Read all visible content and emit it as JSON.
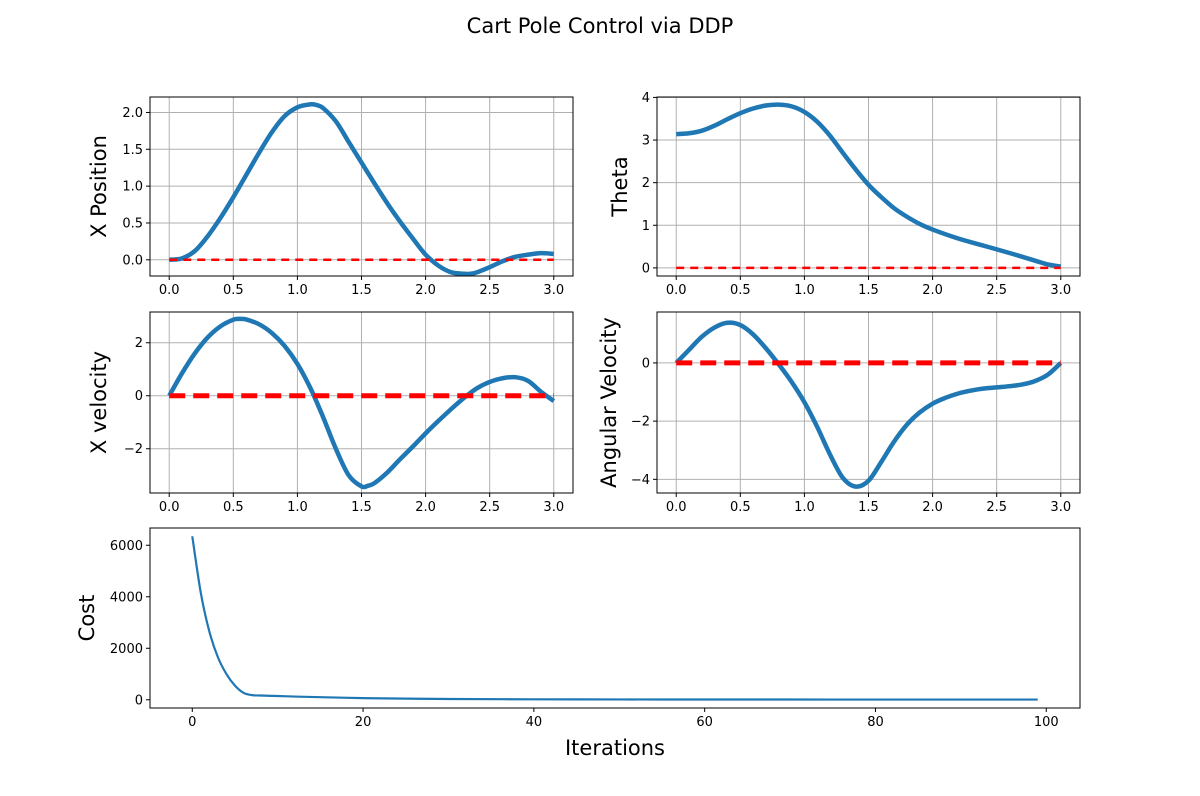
{
  "title": "Cart Pole Control via DDP",
  "colors": {
    "state": "#1f77b4",
    "target": "#ff0000",
    "grid": "#b0b0b0"
  },
  "chart_data": [
    {
      "id": "x_position",
      "type": "line",
      "title": "",
      "xlabel": "",
      "ylabel": "X Position",
      "xlim": [
        -0.15,
        3.15
      ],
      "ylim": [
        -0.22,
        2.21
      ],
      "xticks": [
        0.0,
        0.5,
        1.0,
        1.5,
        2.0,
        2.5,
        3.0
      ],
      "xtick_labels": [
        "0.0",
        "0.5",
        "1.0",
        "1.5",
        "2.0",
        "2.5",
        "3.0"
      ],
      "yticks": [
        0.0,
        0.5,
        1.0,
        1.5,
        2.0
      ],
      "ytick_labels": [
        "0.0",
        "0.5",
        "1.0",
        "1.5",
        "2.0"
      ],
      "grid": true,
      "series": [
        {
          "name": "state",
          "style": "solid",
          "x": [
            0,
            0.1,
            0.2,
            0.3,
            0.4,
            0.5,
            0.6,
            0.7,
            0.8,
            0.9,
            1.0,
            1.1,
            1.15,
            1.2,
            1.3,
            1.4,
            1.5,
            1.6,
            1.7,
            1.8,
            1.9,
            2.0,
            2.1,
            2.2,
            2.3,
            2.35,
            2.4,
            2.5,
            2.6,
            2.7,
            2.8,
            2.9,
            3.0
          ],
          "y": [
            0,
            0.02,
            0.12,
            0.32,
            0.57,
            0.85,
            1.15,
            1.45,
            1.73,
            1.95,
            2.07,
            2.11,
            2.1,
            2.06,
            1.88,
            1.6,
            1.32,
            1.04,
            0.77,
            0.52,
            0.29,
            0.07,
            -0.08,
            -0.17,
            -0.19,
            -0.19,
            -0.17,
            -0.1,
            -0.02,
            0.04,
            0.07,
            0.09,
            0.08
          ]
        },
        {
          "name": "target",
          "style": "dashed",
          "x": [
            0,
            3.0
          ],
          "y": [
            0,
            0
          ]
        }
      ]
    },
    {
      "id": "theta",
      "type": "line",
      "title": "",
      "xlabel": "",
      "ylabel": "Theta",
      "xlim": [
        -0.15,
        3.15
      ],
      "ylim": [
        -0.19,
        4.01
      ],
      "xticks": [
        0.0,
        0.5,
        1.0,
        1.5,
        2.0,
        2.5,
        3.0
      ],
      "xtick_labels": [
        "0.0",
        "0.5",
        "1.0",
        "1.5",
        "2.0",
        "2.5",
        "3.0"
      ],
      "yticks": [
        0,
        1,
        2,
        3,
        4
      ],
      "ytick_labels": [
        "0",
        "1",
        "2",
        "3",
        "4"
      ],
      "grid": true,
      "series": [
        {
          "name": "state",
          "style": "solid",
          "x": [
            0,
            0.1,
            0.2,
            0.3,
            0.4,
            0.5,
            0.6,
            0.7,
            0.8,
            0.9,
            1.0,
            1.1,
            1.2,
            1.3,
            1.4,
            1.5,
            1.6,
            1.7,
            1.8,
            1.9,
            2.0,
            2.2,
            2.4,
            2.6,
            2.8,
            2.9,
            3.0
          ],
          "y": [
            3.14,
            3.16,
            3.22,
            3.34,
            3.49,
            3.63,
            3.74,
            3.81,
            3.83,
            3.79,
            3.66,
            3.43,
            3.1,
            2.7,
            2.31,
            1.95,
            1.66,
            1.4,
            1.2,
            1.03,
            0.9,
            0.69,
            0.52,
            0.35,
            0.17,
            0.08,
            0.03
          ]
        },
        {
          "name": "target",
          "style": "dashed",
          "x": [
            0,
            3.0
          ],
          "y": [
            0,
            0
          ]
        }
      ]
    },
    {
      "id": "x_velocity",
      "type": "line",
      "title": "",
      "xlabel": "",
      "ylabel": "X velocity",
      "xlim": [
        -0.15,
        3.15
      ],
      "ylim": [
        -3.67,
        3.16
      ],
      "xticks": [
        0.0,
        0.5,
        1.0,
        1.5,
        2.0,
        2.5,
        3.0
      ],
      "xtick_labels": [
        "0.0",
        "0.5",
        "1.0",
        "1.5",
        "2.0",
        "2.5",
        "3.0"
      ],
      "yticks": [
        -2,
        0,
        2
      ],
      "ytick_labels": [
        "−2",
        "0",
        "2"
      ],
      "grid": true,
      "series": [
        {
          "name": "state",
          "style": "solid",
          "x": [
            0,
            0.1,
            0.2,
            0.3,
            0.4,
            0.5,
            0.55,
            0.6,
            0.7,
            0.8,
            0.9,
            1.0,
            1.1,
            1.2,
            1.3,
            1.4,
            1.5,
            1.55,
            1.6,
            1.7,
            1.8,
            1.9,
            2.0,
            2.1,
            2.2,
            2.3,
            2.4,
            2.5,
            2.6,
            2.7,
            2.8,
            2.9,
            3.0
          ],
          "y": [
            0,
            0.85,
            1.6,
            2.2,
            2.62,
            2.87,
            2.9,
            2.88,
            2.7,
            2.37,
            1.88,
            1.2,
            0.3,
            -0.8,
            -2.0,
            -3.0,
            -3.42,
            -3.4,
            -3.3,
            -2.9,
            -2.4,
            -1.92,
            -1.42,
            -0.95,
            -0.5,
            -0.08,
            0.28,
            0.52,
            0.66,
            0.7,
            0.56,
            0.15,
            -0.2
          ]
        },
        {
          "name": "target",
          "style": "dashed",
          "x": [
            0,
            3.0
          ],
          "y": [
            0,
            0
          ]
        }
      ]
    },
    {
      "id": "angular_velocity",
      "type": "line",
      "title": "",
      "xlabel": "",
      "ylabel": "Angular Velocity",
      "xlim": [
        -0.15,
        3.15
      ],
      "ylim": [
        -4.47,
        1.75
      ],
      "xticks": [
        0.0,
        0.5,
        1.0,
        1.5,
        2.0,
        2.5,
        3.0
      ],
      "xtick_labels": [
        "0.0",
        "0.5",
        "1.0",
        "1.5",
        "2.0",
        "2.5",
        "3.0"
      ],
      "yticks": [
        -4,
        -2,
        0
      ],
      "ytick_labels": [
        "−4",
        "−2",
        "0"
      ],
      "grid": true,
      "series": [
        {
          "name": "state",
          "style": "solid",
          "x": [
            0,
            0.1,
            0.2,
            0.3,
            0.4,
            0.5,
            0.6,
            0.7,
            0.8,
            0.9,
            1.0,
            1.1,
            1.2,
            1.3,
            1.4,
            1.5,
            1.6,
            1.7,
            1.8,
            1.9,
            2.0,
            2.1,
            2.2,
            2.3,
            2.4,
            2.5,
            2.6,
            2.7,
            2.8,
            2.9,
            3.0
          ],
          "y": [
            0,
            0.45,
            0.9,
            1.22,
            1.38,
            1.3,
            0.98,
            0.5,
            -0.05,
            -0.65,
            -1.35,
            -2.2,
            -3.15,
            -3.95,
            -4.25,
            -4.05,
            -3.4,
            -2.7,
            -2.12,
            -1.7,
            -1.4,
            -1.2,
            -1.05,
            -0.95,
            -0.88,
            -0.84,
            -0.8,
            -0.74,
            -0.62,
            -0.4,
            0.0
          ]
        },
        {
          "name": "target",
          "style": "dashed",
          "x": [
            0,
            3.0
          ],
          "y": [
            0,
            0
          ]
        }
      ]
    },
    {
      "id": "cost",
      "type": "line",
      "title": "",
      "xlabel": "Iterations",
      "ylabel": "Cost",
      "xlim": [
        -4.95,
        103.95
      ],
      "ylim": [
        -320,
        6670
      ],
      "xticks": [
        0,
        20,
        40,
        60,
        80,
        100
      ],
      "xtick_labels": [
        "0",
        "20",
        "40",
        "60",
        "80",
        "100"
      ],
      "yticks": [
        0,
        2000,
        4000,
        6000
      ],
      "ytick_labels": [
        "0",
        "2000",
        "4000",
        "6000"
      ],
      "grid": false,
      "series": [
        {
          "name": "cost",
          "style": "solid",
          "x": [
            0,
            1,
            2,
            3,
            4,
            5,
            6,
            7,
            8,
            10,
            12,
            15,
            20,
            25,
            30,
            40,
            50,
            60,
            70,
            80,
            90,
            99
          ],
          "y": [
            6350,
            4150,
            2650,
            1650,
            1000,
            550,
            270,
            180,
            165,
            145,
            125,
            100,
            65,
            45,
            30,
            18,
            12,
            10,
            9,
            8,
            8,
            7
          ]
        }
      ]
    }
  ]
}
